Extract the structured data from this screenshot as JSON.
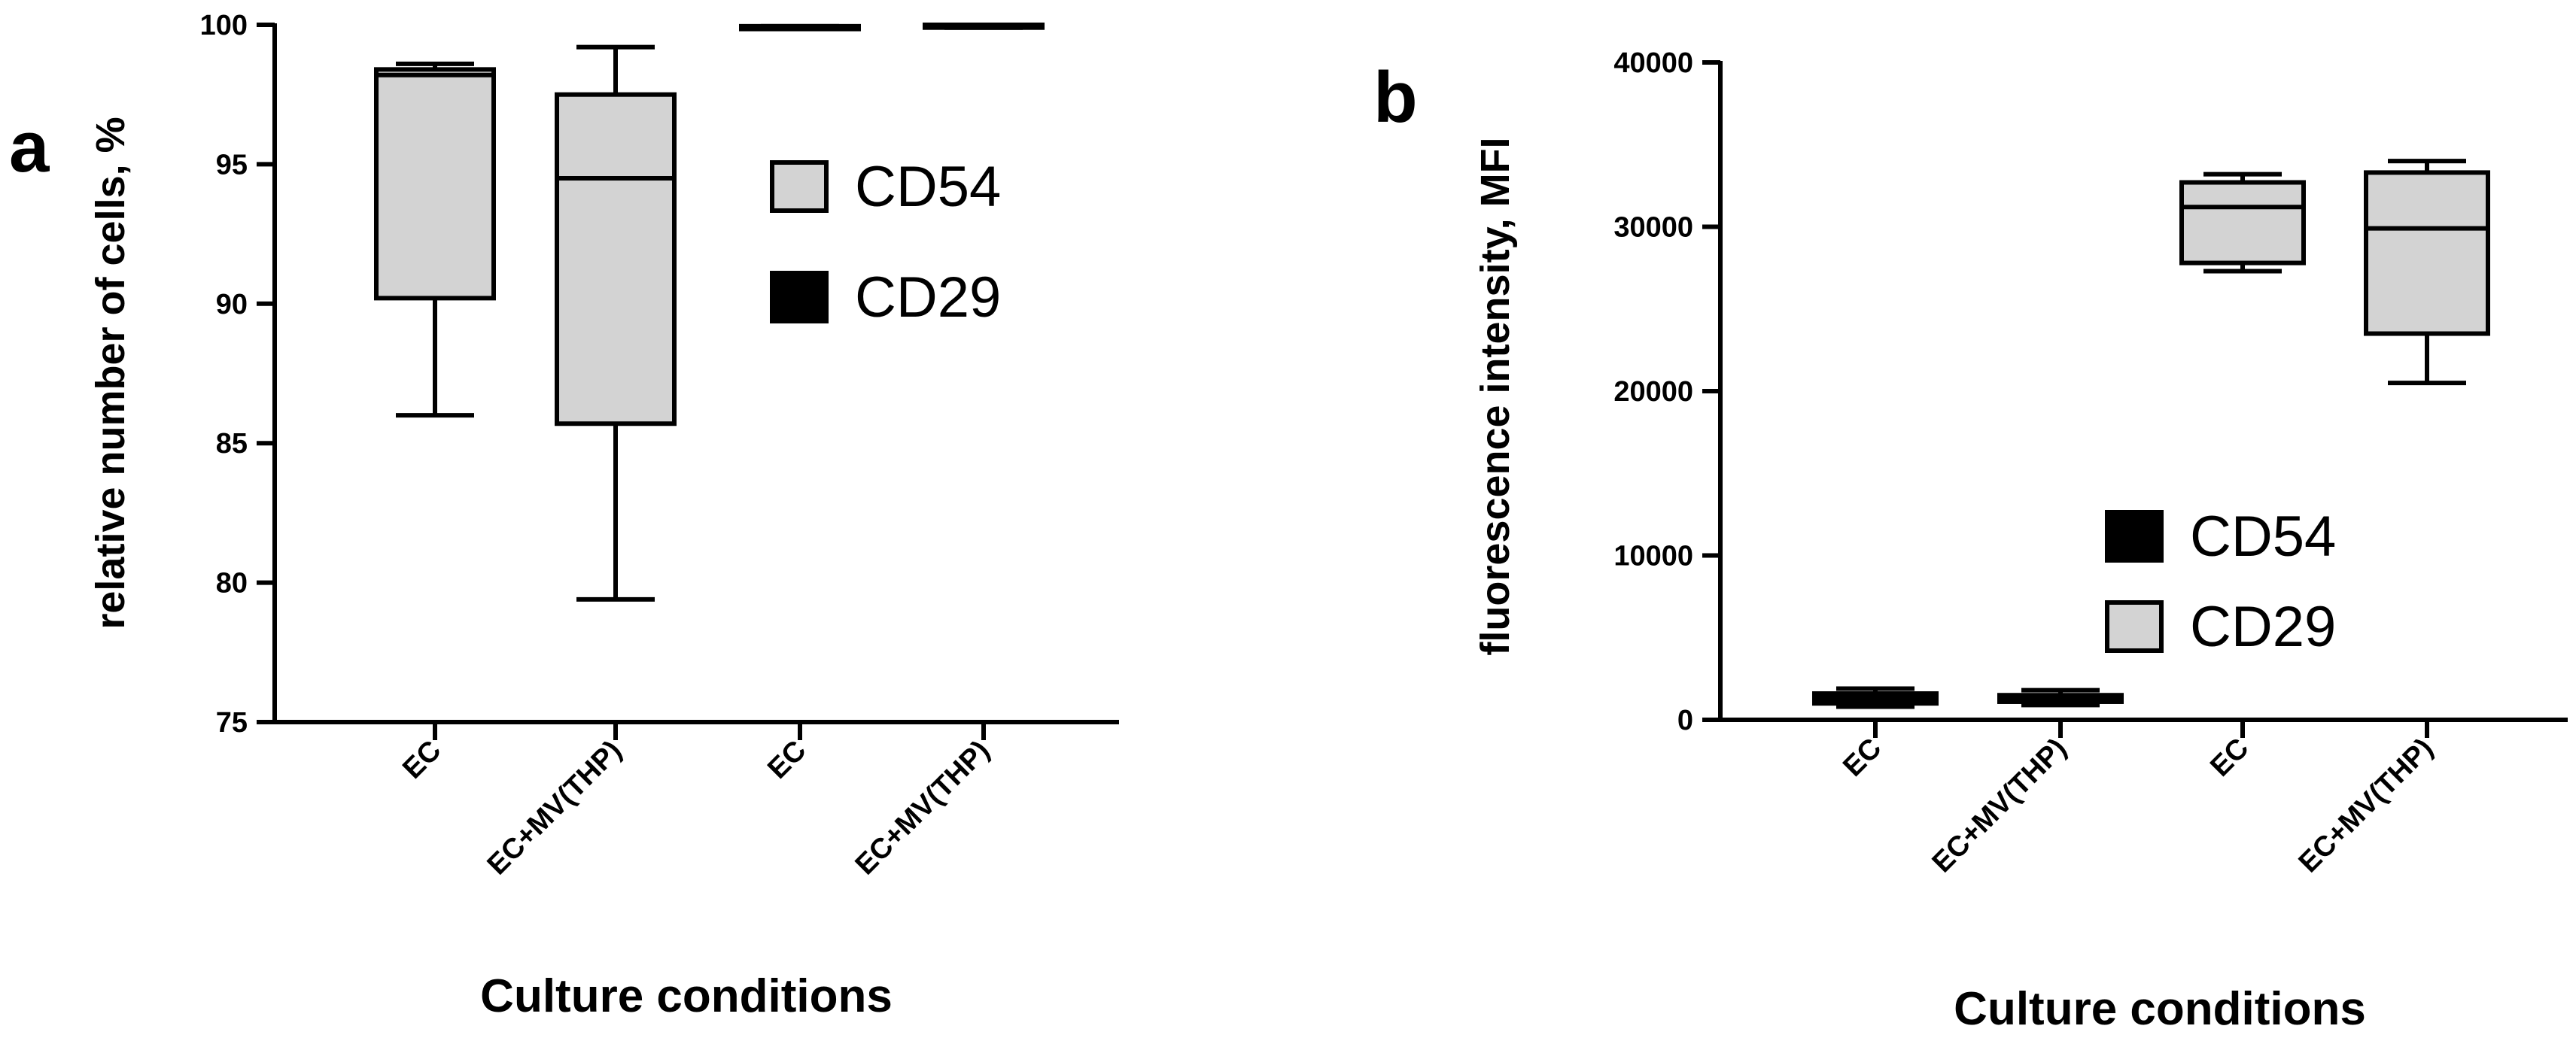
{
  "figure": {
    "colors": {
      "axis": "#000000",
      "gray_fill": "#d3d3d3",
      "black_fill": "#000000"
    }
  },
  "chart_data": [
    {
      "type": "box",
      "panel_label": "a",
      "xlabel": "Culture conditions",
      "ylabel": "relative number of cells, %",
      "ylim": [
        75,
        100
      ],
      "yticks": [
        "75",
        "80",
        "85",
        "90",
        "95",
        "100"
      ],
      "categories": [
        "EC",
        "EC+MV(THP)",
        "EC",
        "EC+MV(THP)"
      ],
      "legend": [
        {
          "name": "CD54",
          "fill": "#d3d3d3"
        },
        {
          "name": "CD29",
          "fill": "#000000"
        }
      ],
      "legend_position": "upper-right",
      "boxes": [
        {
          "category": "EC",
          "series": "CD54",
          "min": 86.0,
          "q1": 90.2,
          "median": 98.2,
          "q3": 98.4,
          "max": 98.6,
          "fill": "#d3d3d3"
        },
        {
          "category": "EC+MV(THP)",
          "series": "CD54",
          "min": 79.4,
          "q1": 85.7,
          "median": 94.5,
          "q3": 97.5,
          "max": 99.2,
          "fill": "#d3d3d3"
        },
        {
          "category": "EC",
          "series": "CD29",
          "min": 99.85,
          "q1": 99.85,
          "median": 99.9,
          "q3": 99.95,
          "max": 99.95,
          "fill": "#000000"
        },
        {
          "category": "EC+MV(THP)",
          "series": "CD29",
          "min": 99.9,
          "q1": 99.9,
          "median": 99.95,
          "q3": 100.0,
          "max": 100.0,
          "fill": "#000000"
        }
      ]
    },
    {
      "type": "box",
      "panel_label": "b",
      "xlabel": "Culture conditions",
      "ylabel": "fluorescence intensity, MFI",
      "ylim": [
        0,
        40000
      ],
      "yticks": [
        "0",
        "10000",
        "20000",
        "30000",
        "40000"
      ],
      "categories": [
        "EC",
        "EC+MV(THP)",
        "EC",
        "EC+MV(THP)"
      ],
      "legend": [
        {
          "name": "CD54",
          "fill": "#000000"
        },
        {
          "name": "CD29",
          "fill": "#d3d3d3"
        }
      ],
      "legend_position": "center-right",
      "boxes": [
        {
          "category": "EC",
          "series": "CD54",
          "min": 800,
          "q1": 1000,
          "median": 1300,
          "q3": 1600,
          "max": 1900,
          "fill": "#000000"
        },
        {
          "category": "EC+MV(THP)",
          "series": "CD54",
          "min": 900,
          "q1": 1100,
          "median": 1300,
          "q3": 1500,
          "max": 1800,
          "fill": "#000000"
        },
        {
          "category": "EC",
          "series": "CD29",
          "min": 27300,
          "q1": 27800,
          "median": 31200,
          "q3": 32700,
          "max": 33200,
          "fill": "#d3d3d3"
        },
        {
          "category": "EC+MV(THP)",
          "series": "CD29",
          "min": 20500,
          "q1": 23500,
          "median": 29900,
          "q3": 33300,
          "max": 34000,
          "fill": "#d3d3d3"
        }
      ]
    }
  ]
}
